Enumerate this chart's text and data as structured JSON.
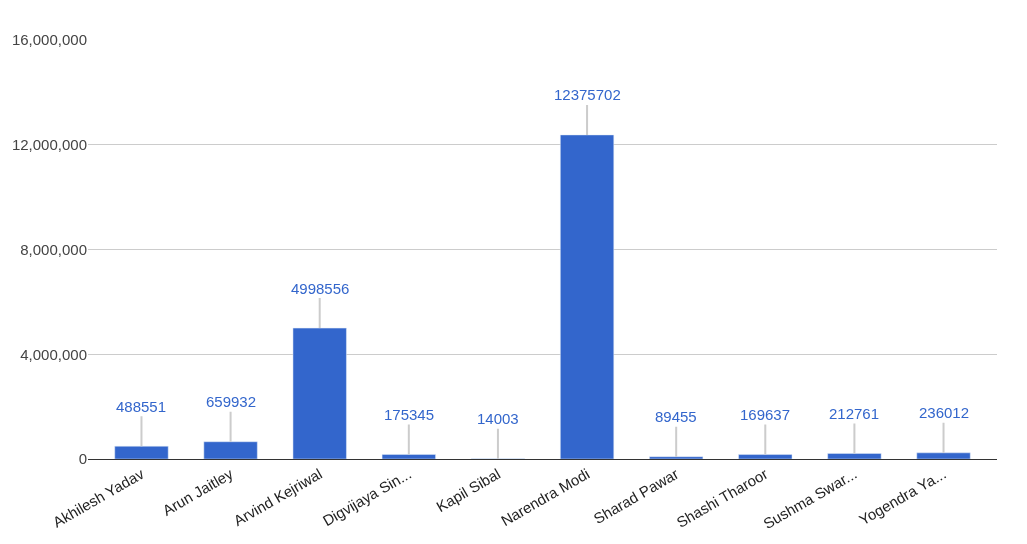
{
  "chart_data": {
    "type": "bar",
    "categories": [
      "Akhilesh Yadav",
      "Arun Jaitley",
      "Arvind Kejriwal",
      "Digvijaya Sin...",
      "Kapil Sibal",
      "Narendra Modi",
      "Sharad Pawar",
      "Shashi Tharoor",
      "Sushma Swar...",
      "Yogendra Ya..."
    ],
    "values": [
      488551,
      659932,
      4998556,
      175345,
      14003,
      12375702,
      89455,
      169637,
      212761,
      236012
    ],
    "color": "#3366cc",
    "ylim": [
      0,
      16000000
    ],
    "yticks": [
      {
        "value": 0,
        "label": "0"
      },
      {
        "value": 4000000,
        "label": "4,000,000"
      },
      {
        "value": 8000000,
        "label": "8,000,000"
      },
      {
        "value": 12000000,
        "label": "12,000,000"
      },
      {
        "value": 16000000,
        "label": "16,000,000"
      }
    ],
    "grid": "y",
    "data_labels": true
  }
}
